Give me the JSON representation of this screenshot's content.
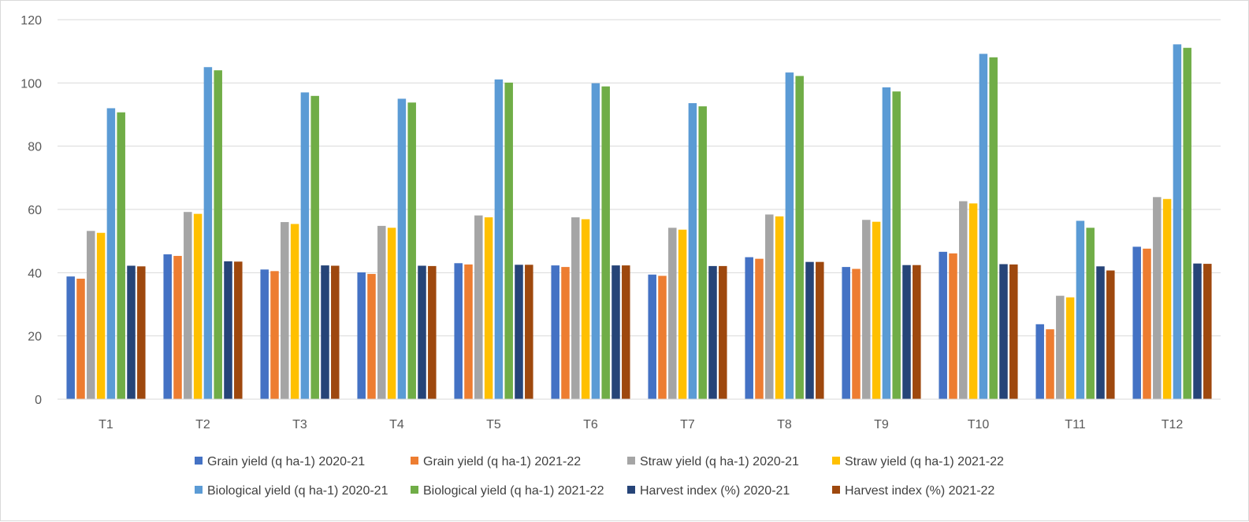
{
  "chart_data": {
    "type": "bar",
    "title": "",
    "xlabel": "",
    "ylabel": "",
    "ylim": [
      0,
      120
    ],
    "yticks": [
      0,
      20,
      40,
      60,
      80,
      100,
      120
    ],
    "grid": true,
    "legend_position": "bottom",
    "categories": [
      "T1",
      "T2",
      "T3",
      "T4",
      "T5",
      "T6",
      "T7",
      "T8",
      "T9",
      "T10",
      "T11",
      "T12"
    ],
    "series": [
      {
        "name": "Grain yield (q ha-1) 2020-21",
        "color": "#4472C4",
        "values": [
          38.8,
          45.8,
          41.0,
          40.1,
          43.0,
          42.3,
          39.4,
          44.9,
          41.8,
          46.6,
          23.7,
          48.2
        ]
      },
      {
        "name": "Grain yield (q ha-1) 2021-22",
        "color": "#ED7D31",
        "values": [
          38.1,
          45.3,
          40.5,
          39.6,
          42.6,
          41.8,
          39.0,
          44.4,
          41.2,
          46.1,
          22.1,
          47.6
        ]
      },
      {
        "name": "Straw yield (q ha-1) 2020-21",
        "color": "#A5A5A5",
        "values": [
          53.2,
          59.2,
          56.0,
          54.8,
          58.1,
          57.5,
          54.2,
          58.4,
          56.7,
          62.6,
          32.7,
          63.9
        ]
      },
      {
        "name": "Straw yield (q ha-1) 2021-22",
        "color": "#FFC000",
        "values": [
          52.6,
          58.6,
          55.4,
          54.2,
          57.5,
          56.9,
          53.6,
          57.8,
          56.1,
          61.9,
          32.2,
          63.3
        ]
      },
      {
        "name": "Biological yield (q ha-1) 2020-21",
        "color": "#5B9BD5",
        "values": [
          92.0,
          105.0,
          97.0,
          95.0,
          101.1,
          99.9,
          93.6,
          103.3,
          98.6,
          109.2,
          56.4,
          112.2
        ]
      },
      {
        "name": "Biological yield (q ha-1) 2021-22",
        "color": "#70AD47",
        "values": [
          90.7,
          104.0,
          95.9,
          93.8,
          100.1,
          98.9,
          92.6,
          102.2,
          97.3,
          108.1,
          54.2,
          111.1
        ]
      },
      {
        "name": "Harvest index (%)  2020-21",
        "color": "#264478",
        "values": [
          42.2,
          43.6,
          42.3,
          42.2,
          42.5,
          42.3,
          42.1,
          43.4,
          42.4,
          42.7,
          42.0,
          42.9
        ]
      },
      {
        "name": "Harvest index (%)  2021-22",
        "color": "#9E480E",
        "values": [
          42.0,
          43.5,
          42.2,
          42.1,
          42.5,
          42.3,
          42.1,
          43.4,
          42.4,
          42.6,
          40.7,
          42.8
        ]
      }
    ]
  }
}
